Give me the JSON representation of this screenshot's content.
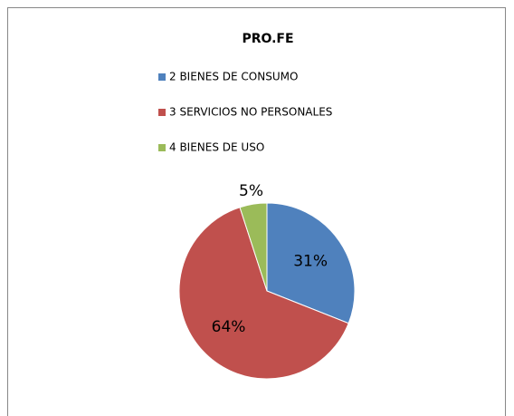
{
  "chart_data": {
    "type": "pie",
    "title": "PRO.FE",
    "categories": [
      "2 BIENES DE CONSUMO",
      "3 SERVICIOS NO PERSONALES",
      "4 BIENES DE USO"
    ],
    "values": [
      31,
      64,
      5
    ],
    "value_labels": [
      "31%",
      "64%",
      "5%"
    ],
    "colors": [
      "#4f81bd",
      "#c0504d",
      "#9bbb59"
    ],
    "legend": "top"
  }
}
